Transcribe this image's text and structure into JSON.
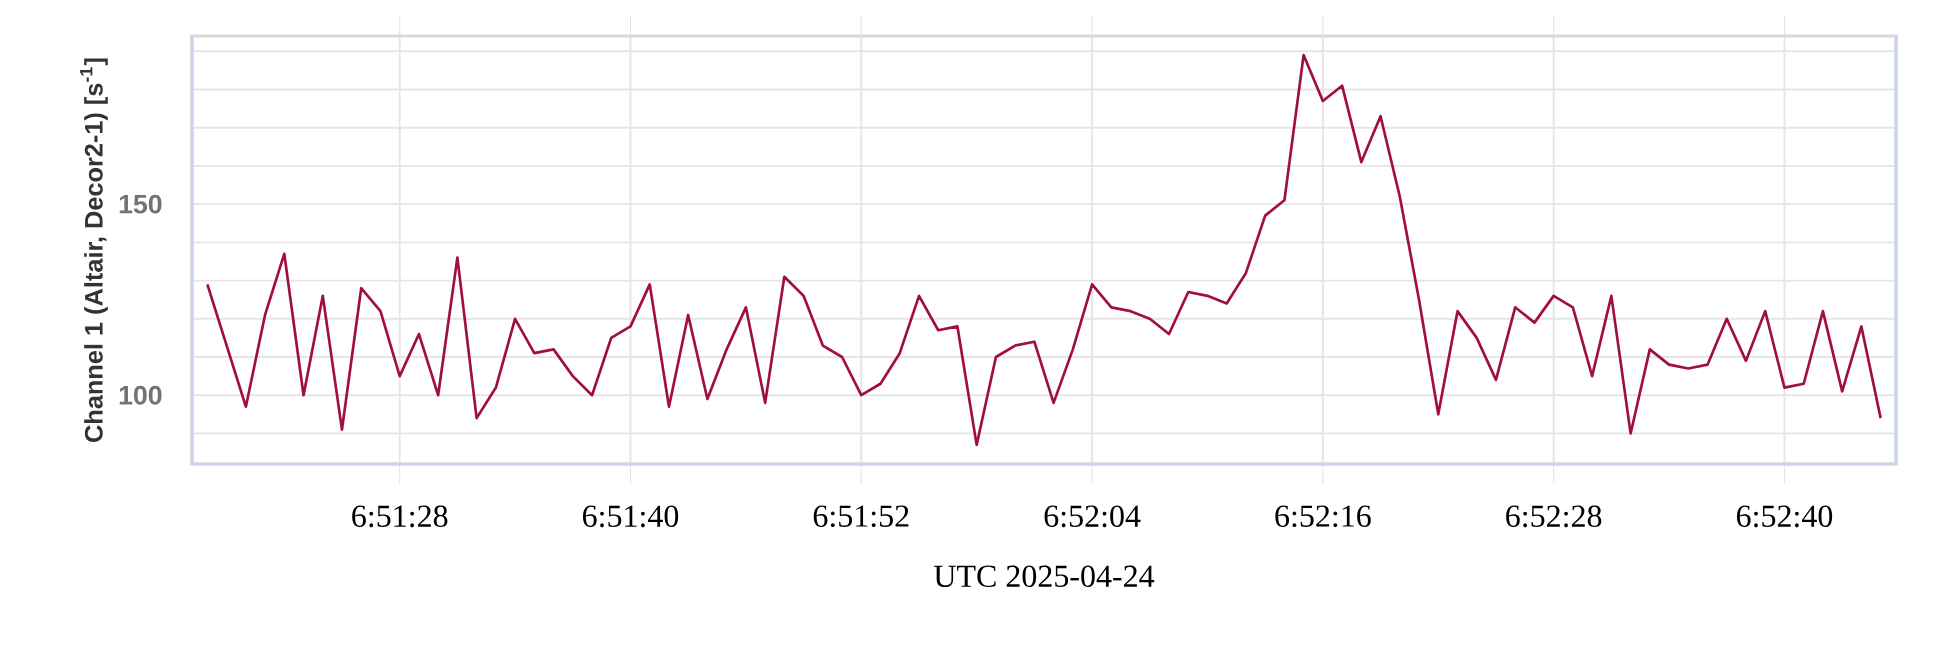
{
  "chart_data": {
    "type": "line",
    "xlabel": "UTC  2025-04-24",
    "ylabel": "Channel 1 (Altair, Decor2-1) [s$^{-1}$]",
    "x": [
      6.855,
      6.855278,
      6.855556,
      6.855833,
      6.856111,
      6.856389,
      6.856667,
      6.856944,
      6.857222,
      6.8575,
      6.857778,
      6.858056,
      6.858333,
      6.858611,
      6.858889,
      6.859167,
      6.859444,
      6.859722,
      6.86,
      6.860278,
      6.860556,
      6.860833,
      6.861111,
      6.861389,
      6.861667,
      6.861944,
      6.862222,
      6.8625,
      6.862778,
      6.863056,
      6.863333,
      6.863611,
      6.863889,
      6.864167,
      6.864444,
      6.864722,
      6.865,
      6.865278,
      6.865556,
      6.865833,
      6.866111,
      6.866389,
      6.866667,
      6.866944,
      6.867222,
      6.8675,
      6.867778,
      6.868056,
      6.868333,
      6.868611,
      6.868889,
      6.869167,
      6.869444,
      6.869722,
      6.87,
      6.870278,
      6.870556,
      6.870833,
      6.871111,
      6.871389,
      6.871667,
      6.871944,
      6.872222,
      6.8725,
      6.872778,
      6.873056,
      6.873333,
      6.873611,
      6.873889,
      6.874167,
      6.874444,
      6.874722,
      6.875,
      6.875278,
      6.875556,
      6.875833,
      6.876111,
      6.876389,
      6.876667,
      6.876944,
      6.877222,
      6.8775,
      6.877778,
      6.878056,
      6.878333,
      6.878611,
      6.878889,
      6.879167
    ],
    "series": [
      {
        "color": "#a0103a",
        "values": [
          129,
          113,
          97,
          121,
          137,
          100,
          126,
          91,
          128,
          122,
          105,
          116,
          100,
          136,
          94,
          102,
          120,
          111,
          112,
          105,
          100,
          115,
          118,
          129,
          97,
          121,
          99,
          112,
          123,
          98,
          131,
          126,
          113,
          110,
          100,
          103,
          111,
          126,
          117,
          118,
          87,
          110,
          113,
          114,
          98,
          112,
          129,
          123,
          122,
          120,
          116,
          127,
          126,
          124,
          132,
          147,
          151,
          189,
          177,
          181,
          161,
          173,
          152,
          125,
          95,
          122,
          115,
          104,
          123,
          119,
          126,
          123,
          105,
          126,
          90,
          112,
          108,
          107,
          108,
          120,
          109,
          122,
          102,
          103,
          122,
          101,
          118,
          94
        ]
      }
    ],
    "xlim": [
      6.854778,
      6.879389
    ],
    "ylim": [
      82,
      194
    ],
    "xticks": [
      {
        "value": 6.857778,
        "label": "6:51:28"
      },
      {
        "value": 6.861111,
        "label": "6:51:40"
      },
      {
        "value": 6.864444,
        "label": "6:51:52"
      },
      {
        "value": 6.867778,
        "label": "6:52:04"
      },
      {
        "value": 6.871111,
        "label": "6:52:16"
      },
      {
        "value": 6.874444,
        "label": "6:52:28"
      },
      {
        "value": 6.877778,
        "label": "6:52:40"
      }
    ],
    "yticks": [
      {
        "value": 90,
        "label": null
      },
      100,
      {
        "value": 110,
        "label": null
      },
      {
        "value": 120,
        "label": null
      },
      {
        "value": 130,
        "label": null
      },
      {
        "value": 140,
        "label": null
      },
      150,
      {
        "value": 160,
        "label": null
      },
      {
        "value": 170,
        "label": null
      },
      {
        "value": 180,
        "label": null
      },
      {
        "value": 190,
        "label": null
      }
    ],
    "grid": true
  }
}
